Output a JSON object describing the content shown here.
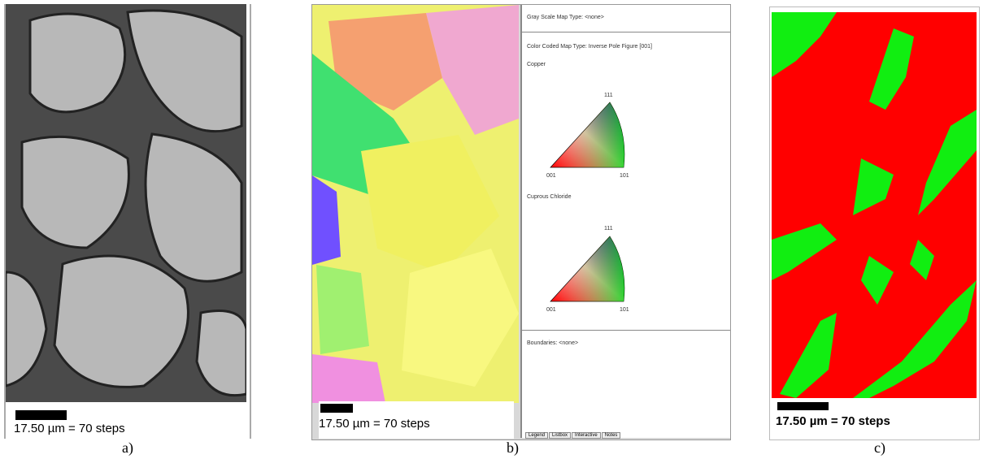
{
  "panels": [
    {
      "scale_text": "17.50 µm = 70 steps",
      "caption": "a)"
    },
    {
      "scale_text": "17.50 µm = 70 steps",
      "caption": "b)",
      "legend": {
        "gray_scale": "Gray Scale Map Type: <none>",
        "color_coded": "Color Coded Map Type: Inverse Pole Figure [001]",
        "phases": [
          {
            "name": "Copper",
            "top": "111",
            "left": "001",
            "right": "101"
          },
          {
            "name": "Cuprous Chloride",
            "top": "111",
            "left": "001",
            "right": "101"
          }
        ],
        "boundaries": "Boundaries: <none>",
        "tabs": [
          "Legend",
          "Listbox",
          "Interactive",
          "Notes"
        ]
      }
    },
    {
      "scale_text": "17.50 µm = 70 steps",
      "caption": "c)"
    }
  ]
}
